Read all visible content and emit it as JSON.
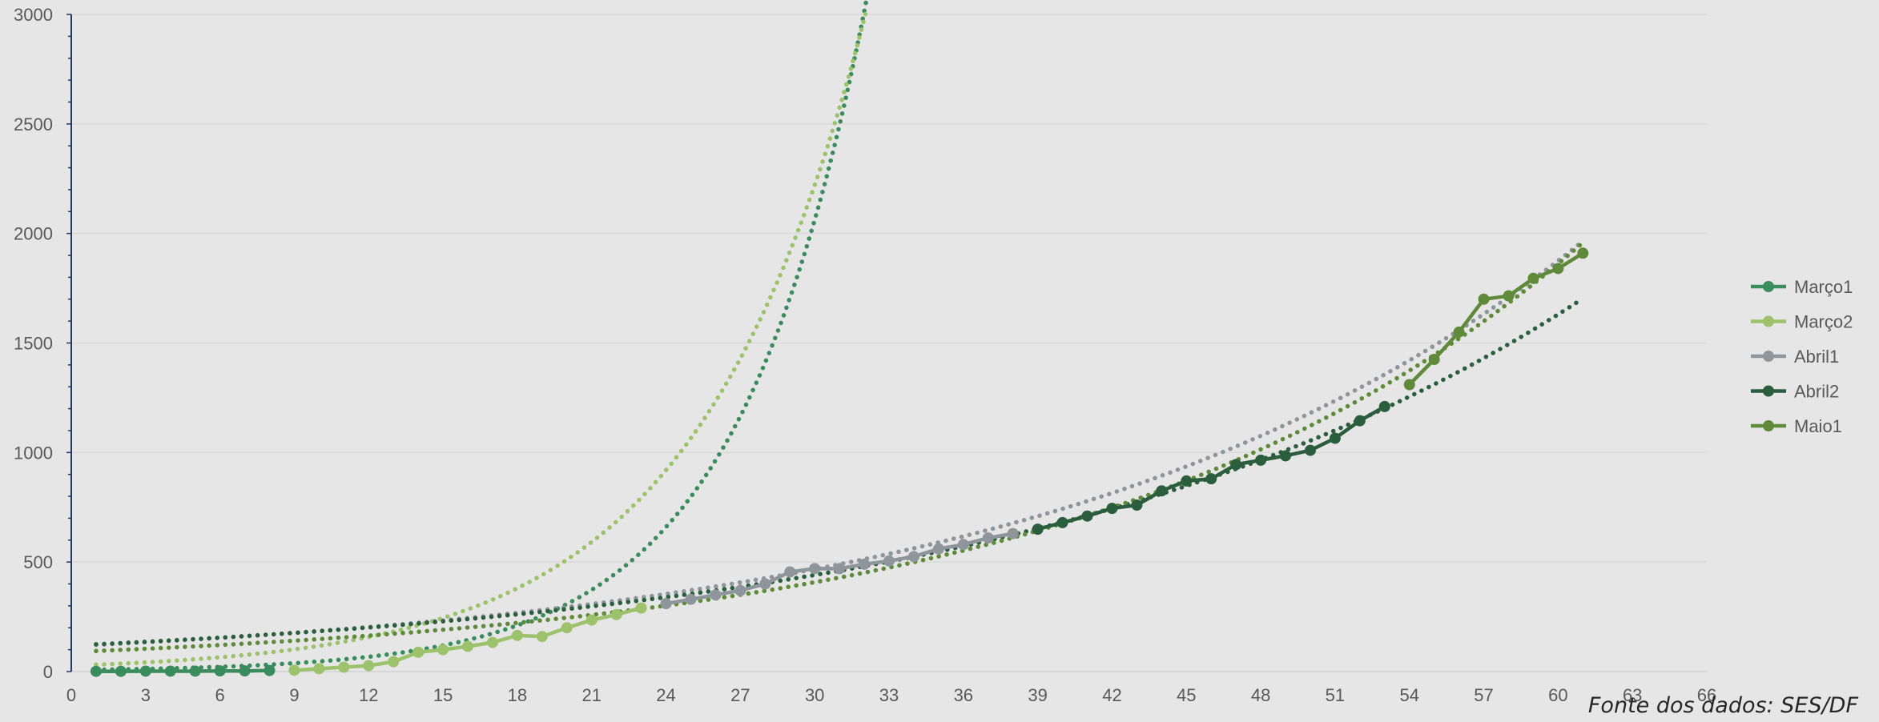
{
  "source_note": "Fonte dos dados: SES/DF",
  "chart_data": {
    "type": "line",
    "title": "",
    "xlabel": "",
    "ylabel": "",
    "xlim": [
      0,
      66
    ],
    "ylim": [
      0,
      3000
    ],
    "x_ticks": [
      0,
      3,
      6,
      9,
      12,
      15,
      18,
      21,
      24,
      27,
      30,
      33,
      36,
      39,
      42,
      45,
      48,
      51,
      54,
      57,
      60,
      63,
      66
    ],
    "y_ticks": [
      0,
      500,
      1000,
      1500,
      2000,
      2500,
      3000
    ],
    "grid": true,
    "legend_position": "right",
    "colors": {
      "background": "#e6e6e6",
      "grid": "#d9d9d9",
      "axis": "#1f3864",
      "tick_label": "#595959"
    },
    "series": [
      {
        "name": "Março1",
        "color": "#3a8c5c",
        "x": [
          1,
          2,
          3,
          4,
          5,
          6,
          7,
          8
        ],
        "y": [
          1,
          1,
          2,
          2,
          2,
          3,
          3,
          5
        ]
      },
      {
        "name": "Março2",
        "color": "#9cc36b",
        "x": [
          9,
          10,
          11,
          12,
          13,
          14,
          15,
          16,
          17,
          18,
          19,
          20,
          21,
          22,
          23
        ],
        "y": [
          6,
          13,
          20,
          27,
          45,
          88,
          100,
          115,
          133,
          165,
          160,
          200,
          235,
          260,
          290
        ]
      },
      {
        "name": "Abril1",
        "color": "#8e959b",
        "x": [
          24,
          25,
          26,
          27,
          28,
          29,
          30,
          31,
          32,
          33,
          34,
          35,
          36,
          37,
          38
        ],
        "y": [
          310,
          330,
          350,
          370,
          400,
          455,
          470,
          470,
          490,
          505,
          525,
          560,
          580,
          610,
          630
        ]
      },
      {
        "name": "Abril2",
        "color": "#2a5e3c",
        "x": [
          39,
          40,
          41,
          42,
          43,
          44,
          45,
          46,
          47,
          48,
          49,
          50,
          51,
          52,
          53
        ],
        "y": [
          650,
          680,
          710,
          745,
          760,
          825,
          870,
          880,
          945,
          965,
          985,
          1010,
          1065,
          1145,
          1210
        ]
      },
      {
        "name": "Maio1",
        "color": "#5f8a3a",
        "x": [
          54,
          55,
          56,
          57,
          58,
          59,
          60,
          61
        ],
        "y": [
          1310,
          1425,
          1550,
          1700,
          1715,
          1795,
          1840,
          1910
        ]
      }
    ],
    "trendlines": [
      {
        "series": "Março1",
        "type": "exponential",
        "a": 6.9,
        "b": 0.19,
        "x_start": 1,
        "x_end": 33.1
      },
      {
        "series": "Março2",
        "type": "exponential",
        "a": 27,
        "b": 0.147,
        "x_start": 1,
        "x_end": 32.1
      },
      {
        "series": "Abril1",
        "type": "exponential",
        "a": 116.6,
        "b": 0.0463,
        "x_start": 1,
        "x_end": 61
      },
      {
        "series": "Abril2",
        "type": "exponential",
        "a": 119.2,
        "b": 0.0436,
        "x_start": 1,
        "x_end": 61
      },
      {
        "series": "Maio1",
        "type": "exponential",
        "a": 89.4,
        "b": 0.0506,
        "x_start": 1,
        "x_end": 61
      }
    ]
  }
}
